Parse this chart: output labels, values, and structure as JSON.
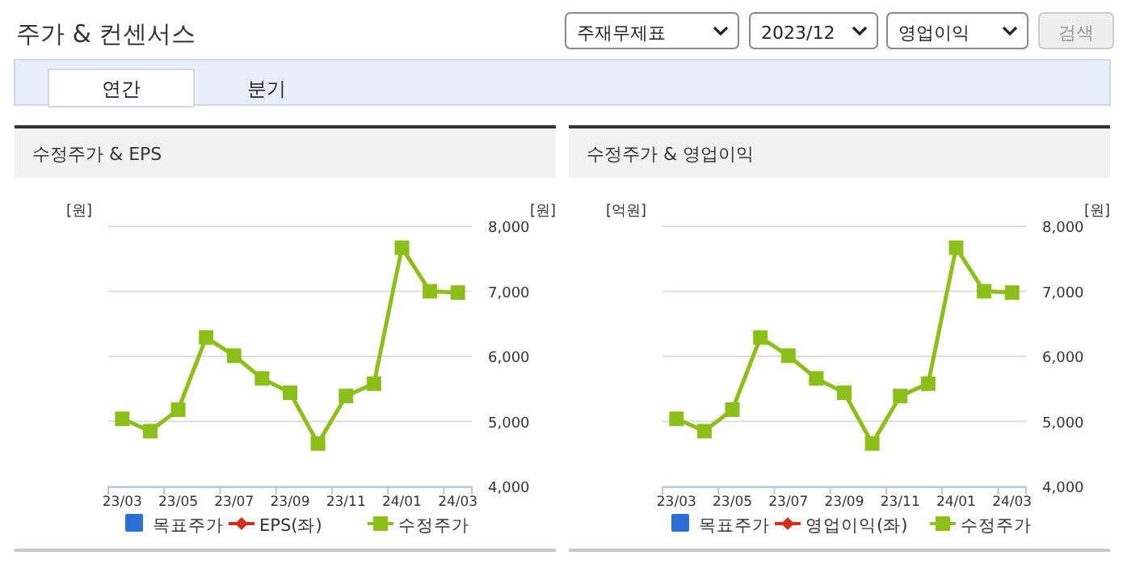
{
  "chart_data": [
    {
      "type": "other",
      "title": "주가 & 컨센서스",
      "annotations": [
        "주재무제표",
        "2023/12",
        "영업이익",
        "검색",
        "연간",
        "분기"
      ]
    },
    {
      "type": "line",
      "title": "수정주가 & EPS",
      "ylabel": "[원]",
      "y2label": "[원]",
      "categories": [
        "23/03",
        null,
        "23/05",
        null,
        "23/07",
        null,
        "23/09",
        null,
        "23/11",
        null,
        "24/01",
        null,
        "24/03"
      ],
      "series": [
        {
          "name": "목표주가",
          "type": "bar",
          "color": "#2a6fd8",
          "values": [
            null,
            null,
            null,
            null,
            null,
            null,
            null,
            null,
            null,
            null,
            null,
            null,
            null
          ]
        },
        {
          "name": "EPS(좌)",
          "type": "line",
          "marker": "diamond",
          "color": "#d0301a",
          "values": [
            null,
            null,
            null,
            null,
            null,
            null,
            null,
            null,
            null,
            null,
            null,
            null,
            null
          ]
        },
        {
          "name": "수정주가",
          "type": "line",
          "marker": "square",
          "axis": "y2",
          "color": "#8cbf1a",
          "values": [
            5040,
            4850,
            5180,
            6290,
            6010,
            5660,
            5440,
            4660,
            5390,
            5580,
            7670,
            7000,
            6980
          ]
        }
      ],
      "y2lim": [
        4000,
        8000
      ],
      "y2ticks": [
        {
          "value": 4000,
          "label": "4,000"
        },
        {
          "value": 5000,
          "label": "5,000"
        },
        {
          "value": 6000,
          "label": "6,000"
        },
        {
          "value": 7000,
          "label": "7,000"
        },
        {
          "value": 8000,
          "label": "8,000"
        }
      ],
      "grid": true,
      "legend": "bottom"
    },
    {
      "type": "line",
      "title": "수정주가 & 영업이익",
      "ylabel": "[억원]",
      "y2label": "[원]",
      "categories": [
        "23/03",
        null,
        "23/05",
        null,
        "23/07",
        null,
        "23/09",
        null,
        "23/11",
        null,
        "24/01",
        null,
        "24/03"
      ],
      "series": [
        {
          "name": "목표주가",
          "type": "bar",
          "color": "#2a6fd8",
          "values": [
            null,
            null,
            null,
            null,
            null,
            null,
            null,
            null,
            null,
            null,
            null,
            null,
            null
          ]
        },
        {
          "name": "영업이익(좌)",
          "type": "line",
          "marker": "diamond",
          "color": "#d0301a",
          "values": [
            null,
            null,
            null,
            null,
            null,
            null,
            null,
            null,
            null,
            null,
            null,
            null,
            null
          ]
        },
        {
          "name": "수정주가",
          "type": "line",
          "marker": "square",
          "axis": "y2",
          "color": "#8cbf1a",
          "values": [
            5040,
            4850,
            5180,
            6290,
            6010,
            5660,
            5440,
            4660,
            5390,
            5580,
            7670,
            7000,
            6980
          ]
        }
      ],
      "y2lim": [
        4000,
        8000
      ],
      "y2ticks": [
        {
          "value": 4000,
          "label": "4,000"
        },
        {
          "value": 5000,
          "label": "5,000"
        },
        {
          "value": 6000,
          "label": "6,000"
        },
        {
          "value": 7000,
          "label": "7,000"
        },
        {
          "value": 8000,
          "label": "8,000"
        }
      ],
      "grid": true,
      "legend": "bottom"
    }
  ]
}
